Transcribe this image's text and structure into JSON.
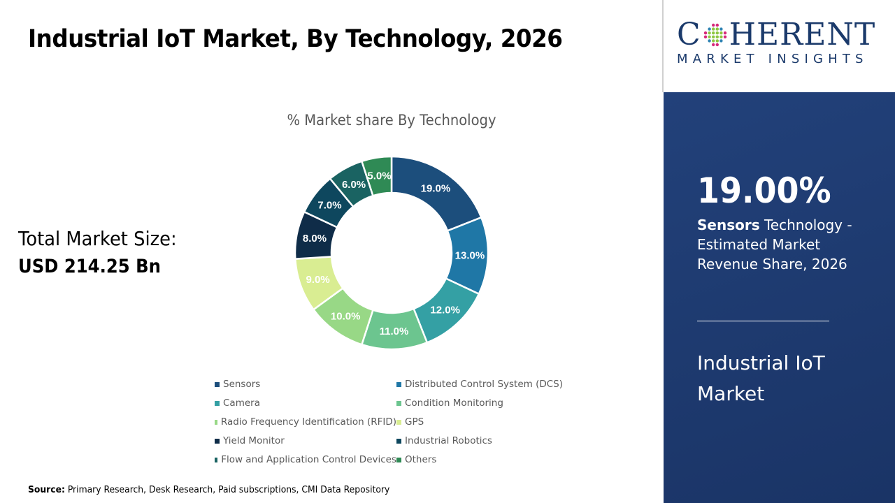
{
  "header": {
    "title": "Industrial IoT Market, By Technology, 2026"
  },
  "total": {
    "label": "Total Market Size:",
    "value": "USD 214.25 Bn"
  },
  "chart_data": {
    "type": "pie",
    "donut": true,
    "title": "% Market share By Technology",
    "categories": [
      "Sensors",
      "Distributed Control System (DCS)",
      "Camera",
      "Condition Monitoring",
      "Radio Frequency Identification (RFID)",
      "GPS",
      "Yield Monitor",
      "Industrial Robotics",
      "Flow and Application Control Devices",
      "Others"
    ],
    "values": [
      19,
      13,
      12,
      11,
      10,
      9,
      8,
      7,
      6,
      5
    ],
    "labels": [
      "19.0%",
      "13.0%",
      "12.0%",
      "11.0%",
      "10.0%",
      "9.0%",
      "8.0%",
      "7.0%",
      "6.0%",
      "5.0%"
    ],
    "colors": [
      "#1c4e7c",
      "#1f77a6",
      "#34a0a4",
      "#6cc58f",
      "#98d886",
      "#d9ed92",
      "#0f2c48",
      "#0e475e",
      "#1a6362",
      "#2f8a55"
    ],
    "legend_position": "bottom"
  },
  "source": {
    "label": "Source:",
    "text": " Primary Research, Desk Research, Paid subscriptions, CMI Data Repository"
  },
  "logo": {
    "line1": "COHERENT",
    "line2": "MARKET INSIGHTS"
  },
  "panel": {
    "highlight": "19.00%",
    "segment": "Sensors",
    "desc": " Technology - Estimated Market Revenue Share, 2026",
    "market": "Industrial IoT Market"
  }
}
